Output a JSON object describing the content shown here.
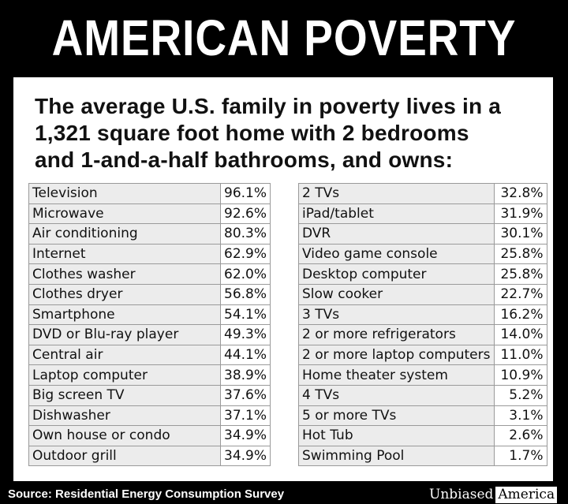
{
  "title": "AMERICAN POVERTY",
  "subtitle": {
    "line1": "The average U.S. family in poverty lives in a",
    "line2": "1,321 square foot home with 2 bedrooms",
    "line3": "and 1-and-a-half bathrooms, and owns:"
  },
  "left_table": [
    {
      "item": "Television",
      "pct": "96.1%"
    },
    {
      "item": "Microwave",
      "pct": "92.6%"
    },
    {
      "item": "Air conditioning",
      "pct": "80.3%"
    },
    {
      "item": "Internet",
      "pct": "62.9%"
    },
    {
      "item": "Clothes washer",
      "pct": "62.0%"
    },
    {
      "item": "Clothes dryer",
      "pct": "56.8%"
    },
    {
      "item": "Smartphone",
      "pct": "54.1%"
    },
    {
      "item": "DVD or Blu-ray player",
      "pct": "49.3%"
    },
    {
      "item": "Central air",
      "pct": "44.1%"
    },
    {
      "item": "Laptop computer",
      "pct": "38.9%"
    },
    {
      "item": "Big screen TV",
      "pct": "37.6%"
    },
    {
      "item": "Dishwasher",
      "pct": "37.1%"
    },
    {
      "item": "Own house or condo",
      "pct": "34.9%"
    },
    {
      "item": "Outdoor grill",
      "pct": "34.9%"
    }
  ],
  "right_table": [
    {
      "item": "2 TVs",
      "pct": "32.8%"
    },
    {
      "item": "iPad/tablet",
      "pct": "31.9%"
    },
    {
      "item": "DVR",
      "pct": "30.1%"
    },
    {
      "item": "Video game console",
      "pct": "25.8%"
    },
    {
      "item": "Desktop computer",
      "pct": "25.8%"
    },
    {
      "item": "Slow cooker",
      "pct": "22.7%"
    },
    {
      "item": "3 TVs",
      "pct": "16.2%"
    },
    {
      "item": "2 or more refrigerators",
      "pct": "14.0%"
    },
    {
      "item": "2 or more laptop computers",
      "pct": "11.0%"
    },
    {
      "item": "Home theater system",
      "pct": "10.9%"
    },
    {
      "item": "4 TVs",
      "pct": "5.2%"
    },
    {
      "item": "5 or more TVs",
      "pct": "3.1%"
    },
    {
      "item": "Hot Tub",
      "pct": "2.6%"
    },
    {
      "item": "Swimming Pool",
      "pct": "1.7%"
    }
  ],
  "source": "Source: Residential Energy Consumption Survey",
  "logo": {
    "part1": "Unbiased",
    "part2": "America"
  }
}
